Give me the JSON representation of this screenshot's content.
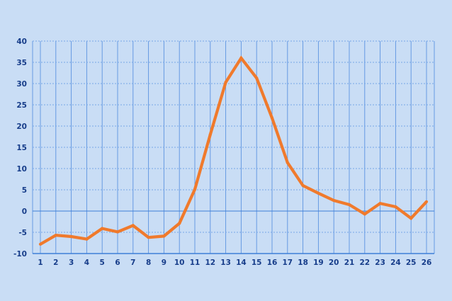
{
  "colors": {
    "background": "#c9ddf5",
    "grid_vertical": "#5b93e0",
    "grid_horizontal": "#78a7e6",
    "axis": "#3d7fd8",
    "tick_text": "#173d8a",
    "line": "#f07a2c"
  },
  "chart_data": {
    "type": "line",
    "title": "",
    "xlabel": "",
    "ylabel": "",
    "x": [
      1,
      2,
      3,
      4,
      5,
      6,
      7,
      8,
      9,
      10,
      11,
      12,
      13,
      14,
      15,
      16,
      17,
      18,
      19,
      20,
      21,
      22,
      23,
      24,
      25,
      26
    ],
    "series": [
      {
        "values": [
          -7.8,
          -5.7,
          -6.0,
          -6.6,
          -4.1,
          -4.9,
          -3.4,
          -6.2,
          -5.9,
          -2.9,
          5.1,
          18.0,
          30.3,
          36.0,
          31.3,
          21.9,
          11.4,
          6.0,
          4.2,
          2.5,
          1.5,
          -0.7,
          1.8,
          1.0,
          -1.7,
          2.2
        ]
      }
    ],
    "xlim": [
      1,
      26
    ],
    "ylim": [
      -10,
      40
    ],
    "yticks": [
      -10,
      -5,
      0,
      5,
      10,
      15,
      20,
      25,
      30,
      35,
      40
    ],
    "xticks": [
      1,
      2,
      3,
      4,
      5,
      6,
      7,
      8,
      9,
      10,
      11,
      12,
      13,
      14,
      15,
      16,
      17,
      18,
      19,
      20,
      21,
      22,
      23,
      24,
      25,
      26
    ],
    "grid": true,
    "legend": "none"
  }
}
